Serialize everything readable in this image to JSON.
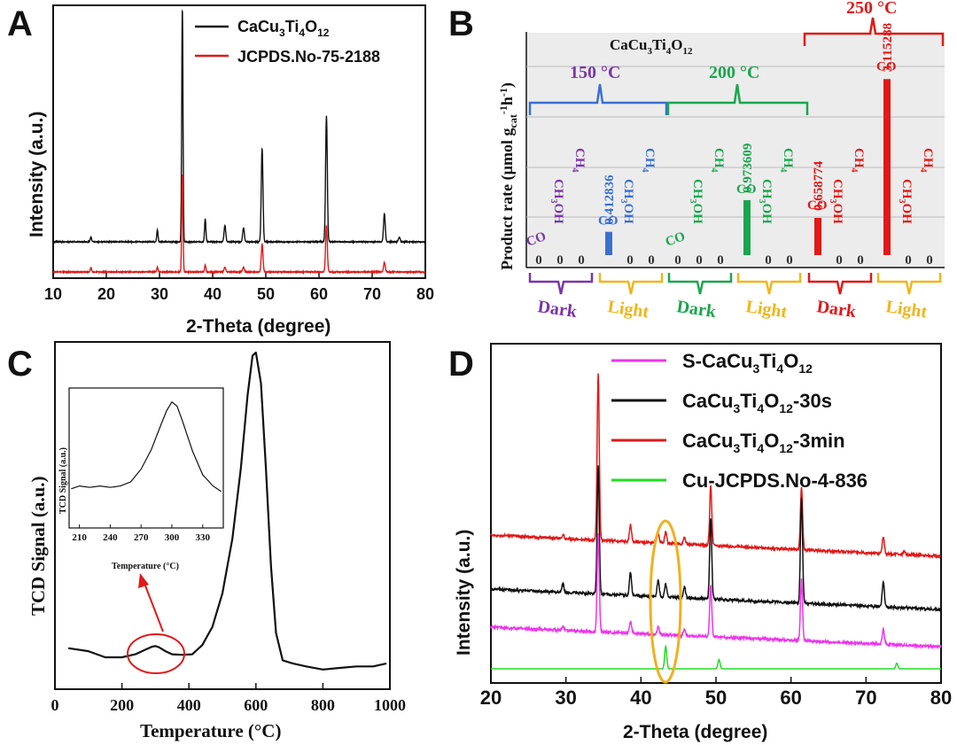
{
  "panels": {
    "a": "A",
    "b": "B",
    "c": "C",
    "d": "D"
  },
  "colors": {
    "black": "#111111",
    "red": "#e11919",
    "blue": "#3a6fd0",
    "green": "#1aa64e",
    "purple": "#7a35a8",
    "yellow": "#f2b51a",
    "magenta": "#ee33ee",
    "lime": "#22dd22",
    "orange": "#f0b020"
  },
  "chart_data": [
    {
      "id": "A",
      "type": "line",
      "xlabel": "2-Theta (degree)",
      "ylabel": "Intensity (a.u.)",
      "xlim": [
        10,
        80
      ],
      "xticks": [
        10,
        20,
        30,
        40,
        50,
        60,
        70,
        80
      ],
      "legend": [
        {
          "name": "CaCu3Ti4O12",
          "color": "#111111"
        },
        {
          "name": "JCPDS.No-75-2188",
          "color": "#e11919"
        }
      ],
      "series": [
        {
          "name": "CaCu3Ti4O12",
          "color": "#111111",
          "baseline": 0.14,
          "peaks": [
            [
              17.1,
              0.02
            ],
            [
              29.6,
              0.05
            ],
            [
              34.3,
              1.0
            ],
            [
              38.6,
              0.1
            ],
            [
              42.3,
              0.07
            ],
            [
              45.8,
              0.06
            ],
            [
              49.3,
              0.4
            ],
            [
              61.4,
              0.54
            ],
            [
              72.3,
              0.12
            ],
            [
              75.1,
              0.02
            ]
          ]
        },
        {
          "name": "JCPDS.No-75-2188",
          "color": "#e11919",
          "baseline": 0.0,
          "peaks": [
            [
              17.1,
              0.02
            ],
            [
              29.6,
              0.02
            ],
            [
              34.3,
              0.42
            ],
            [
              38.6,
              0.03
            ],
            [
              42.3,
              0.02
            ],
            [
              45.8,
              0.02
            ],
            [
              49.3,
              0.12
            ],
            [
              61.4,
              0.2
            ],
            [
              72.3,
              0.04
            ]
          ]
        }
      ]
    },
    {
      "id": "B",
      "type": "bar",
      "title": "CaCu3Ti4O12",
      "ylabel": "Product rate (µmol gcat-1h-1)",
      "temperatures": [
        "150 °C",
        "200 °C",
        "250 °C"
      ],
      "conditions": [
        "Dark",
        "Light",
        "Dark",
        "Light",
        "Dark",
        "Light"
      ],
      "products": [
        "CO",
        "CH3OH",
        "CH4"
      ],
      "values": [
        [
          0,
          0,
          0
        ],
        [
          0.412836,
          0,
          0
        ],
        [
          0,
          0,
          0
        ],
        [
          0.973609,
          0,
          0
        ],
        [
          0.658774,
          0,
          0
        ],
        [
          3.115288,
          0,
          0
        ]
      ],
      "value_labels": [
        "0.412836",
        "0.973609",
        "0.658774",
        "3.115288"
      ],
      "zero_label": "0",
      "ylim": [
        0,
        3.6
      ]
    },
    {
      "id": "C",
      "type": "line",
      "xlabel": "Temperature (°C)",
      "ylabel": "TCD Signal (a.u.)",
      "xlim": [
        0,
        1000
      ],
      "xticks": [
        0,
        200,
        400,
        600,
        800,
        1000
      ],
      "x": [
        40,
        100,
        150,
        200,
        240,
        270,
        290,
        300,
        310,
        330,
        350,
        380,
        410,
        440,
        470,
        500,
        530,
        555,
        575,
        590,
        600,
        615,
        630,
        645,
        660,
        680,
        710,
        750,
        800,
        850,
        900,
        950,
        990
      ],
      "y": [
        0.03,
        0.02,
        0.0,
        0.0,
        0.01,
        0.025,
        0.035,
        0.037,
        0.033,
        0.02,
        0.01,
        0.008,
        0.01,
        0.04,
        0.1,
        0.21,
        0.39,
        0.62,
        0.86,
        0.99,
        1.0,
        0.9,
        0.62,
        0.3,
        0.08,
        -0.01,
        -0.02,
        -0.03,
        -0.04,
        -0.035,
        -0.03,
        -0.03,
        -0.02
      ],
      "inset": {
        "xlabel": "Temperature (°C)",
        "ylabel": "TCD Signal (a.u.)",
        "xlim": [
          200,
          350
        ],
        "xticks": [
          210,
          240,
          270,
          300,
          330
        ],
        "x": [
          202,
          210,
          220,
          230,
          240,
          250,
          260,
          270,
          280,
          290,
          295,
          300,
          305,
          310,
          320,
          330,
          340,
          348
        ],
        "y": [
          0.28,
          0.3,
          0.29,
          0.3,
          0.29,
          0.3,
          0.33,
          0.42,
          0.56,
          0.75,
          0.84,
          0.9,
          0.87,
          0.77,
          0.55,
          0.38,
          0.3,
          0.26
        ]
      }
    },
    {
      "id": "D",
      "type": "line",
      "xlabel": "2-Theta (degree)",
      "ylabel": "Intensity (a.u.)",
      "xlim": [
        20,
        80
      ],
      "xticks": [
        20,
        30,
        40,
        50,
        60,
        70,
        80
      ],
      "legend": [
        {
          "name": "S-CaCu3Ti4O12",
          "color": "#ee33ee"
        },
        {
          "name": "CaCu3Ti4O12-30s",
          "color": "#111111"
        },
        {
          "name": "CaCu3Ti4O12-3min",
          "color": "#e11919"
        },
        {
          "name": "Cu-JCPDS.No-4-836",
          "color": "#22dd22"
        }
      ],
      "series": [
        {
          "name": "CaCu3Ti4O12-3min",
          "color": "#e11919",
          "baseline": 0.58,
          "slope": 0.1,
          "peaks": [
            [
              29.6,
              0.02
            ],
            [
              34.3,
              0.9
            ],
            [
              38.6,
              0.09
            ],
            [
              42.3,
              0.05
            ],
            [
              43.3,
              0.06
            ],
            [
              45.8,
              0.04
            ],
            [
              49.3,
              0.32
            ],
            [
              61.4,
              0.34
            ],
            [
              72.3,
              0.09
            ],
            [
              75.1,
              0.02
            ]
          ]
        },
        {
          "name": "CaCu3Ti4O12-30s",
          "color": "#111111",
          "baseline": 0.3,
          "slope": 0.04,
          "peaks": [
            [
              29.6,
              0.04
            ],
            [
              34.3,
              0.6
            ],
            [
              38.6,
              0.11
            ],
            [
              42.3,
              0.08
            ],
            [
              43.3,
              0.06
            ],
            [
              45.8,
              0.05
            ],
            [
              49.3,
              0.38
            ],
            [
              61.4,
              0.5
            ],
            [
              72.3,
              0.12
            ]
          ]
        },
        {
          "name": "S-CaCu3Ti4O12",
          "color": "#ee33ee",
          "baseline": 0.12,
          "slope": 0.04,
          "peaks": [
            [
              29.6,
              0.02
            ],
            [
              34.3,
              0.48
            ],
            [
              38.6,
              0.06
            ],
            [
              42.3,
              0.04
            ],
            [
              45.8,
              0.03
            ],
            [
              49.3,
              0.25
            ],
            [
              61.4,
              0.3
            ],
            [
              72.3,
              0.07
            ]
          ]
        },
        {
          "name": "Cu-JCPDS.No-4-836",
          "color": "#22dd22",
          "baseline": 0.0,
          "slope": 0.0,
          "peaks": [
            [
              43.3,
              0.12
            ],
            [
              50.4,
              0.05
            ],
            [
              74.1,
              0.03
            ]
          ]
        }
      ]
    }
  ]
}
